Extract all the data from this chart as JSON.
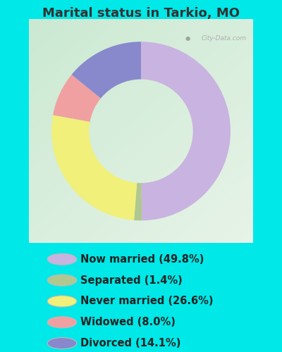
{
  "title": "Marital status in Tarkio, MO",
  "slices": [
    49.8,
    1.4,
    26.6,
    8.0,
    14.1
  ],
  "labels": [
    "Now married (49.8%)",
    "Separated (1.4%)",
    "Never married (26.6%)",
    "Widowed (8.0%)",
    "Divorced (14.1%)"
  ],
  "colors": [
    "#c9b3e0",
    "#b0c890",
    "#f0f07a",
    "#f0a0a0",
    "#8888cc"
  ],
  "background_color_outer": "#00e8e8",
  "background_color_inner_tl": "#c8e8d0",
  "background_color_inner_br": "#e8f5e8",
  "title_color": "#333333",
  "title_fontsize": 13,
  "legend_fontsize": 10.5,
  "watermark": "City-Data.com",
  "startangle": 90
}
